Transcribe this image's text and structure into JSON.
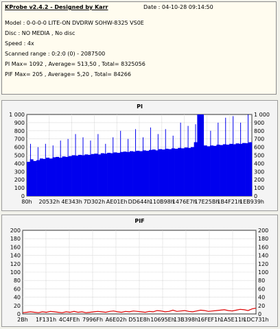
{
  "info": {
    "title": "KProbe v2.4.2 - Designed by Karr",
    "date": "Date : 04-10-28 09:14:50",
    "model": "Model : 0-0-0-0 LITE-ON DVDRW SOHW-8325  VS0E",
    "disc": "Disc : NO MEDIA , No disc",
    "speed": "Speed : 4x",
    "scanned_range": "Scanned range : 0:2:0 (0) - 2087500",
    "pi_stats": "PI Max= 1092 , Average= 513,50 , Total= 8325056",
    "pif_stats": "PIF Max= 205 , Average= 5,20 , Total= 84266"
  },
  "colors": {
    "pi_bars": "#0000ee",
    "pif_line": "#dd0000",
    "grid": "#bbbbbb",
    "background": "#f1f1ea",
    "info_bg": "#fffcef"
  },
  "chart_data": [
    {
      "type": "bar",
      "title": "PI",
      "ylim": [
        0,
        1000
      ],
      "y_ticks": [
        "1 000",
        "900",
        "800",
        "700",
        "600",
        "500",
        "400",
        "300",
        "200",
        "100",
        "0"
      ],
      "x_ticks": [
        "80h",
        "20532h",
        "4E343h",
        "7D302h",
        "AE01Eh",
        "DD644h",
        "110B98h",
        "1476E7h",
        "17E25Bh",
        "1B4F21h",
        "1EB939h"
      ],
      "series": [
        {
          "values": [
            420,
            450,
            430,
            440,
            460,
            455,
            470,
            460,
            475,
            480,
            470,
            485,
            480,
            490,
            500,
            495,
            505,
            500,
            510,
            505,
            515,
            520,
            510,
            525,
            520,
            530,
            525,
            535,
            530,
            540,
            545,
            540,
            550,
            545,
            555,
            550,
            560,
            555,
            565,
            570,
            560,
            575,
            570,
            580,
            575,
            585,
            580,
            590,
            585,
            595,
            590,
            600,
            660,
            1050,
            1040,
            620,
            610,
            620,
            615,
            630,
            625,
            635,
            630,
            640,
            635,
            645,
            640,
            650,
            648,
            660
          ],
          "peaks": [
            640,
            600,
            640,
            620,
            680,
            700,
            760,
            720,
            680,
            760,
            640,
            720,
            800,
            700,
            820,
            720,
            840,
            760,
            820,
            740,
            900,
            860,
            880,
            840,
            800,
            900,
            960,
            980,
            900,
            1000
          ]
        }
      ]
    },
    {
      "type": "line",
      "title": "PIF",
      "ylim": [
        0,
        200
      ],
      "y_ticks": [
        "200",
        "180",
        "160",
        "140",
        "120",
        "100",
        "80",
        "60",
        "40",
        "20",
        "0"
      ],
      "x_ticks": [
        "2Bh",
        "1F131h",
        "4C4FEh",
        "7996Fh",
        "A6E02h",
        "D51E8h",
        "10695Eh",
        "13B398h",
        "16FEF1h",
        "1A5E11h",
        "1DC731h"
      ],
      "series": [
        {
          "values": [
            3,
            4,
            5,
            4,
            3,
            5,
            4,
            6,
            5,
            4,
            3,
            5,
            4,
            6,
            4,
            5,
            3,
            4,
            5,
            6,
            5,
            4,
            6,
            7,
            5,
            4,
            6,
            5,
            7,
            6,
            5,
            4,
            6,
            5,
            8,
            7,
            5,
            6,
            9,
            6,
            7,
            8,
            6,
            5,
            7,
            9,
            8,
            6,
            7,
            8,
            9,
            10,
            8,
            7,
            9,
            11,
            10,
            8,
            12,
            14
          ]
        }
      ]
    }
  ]
}
